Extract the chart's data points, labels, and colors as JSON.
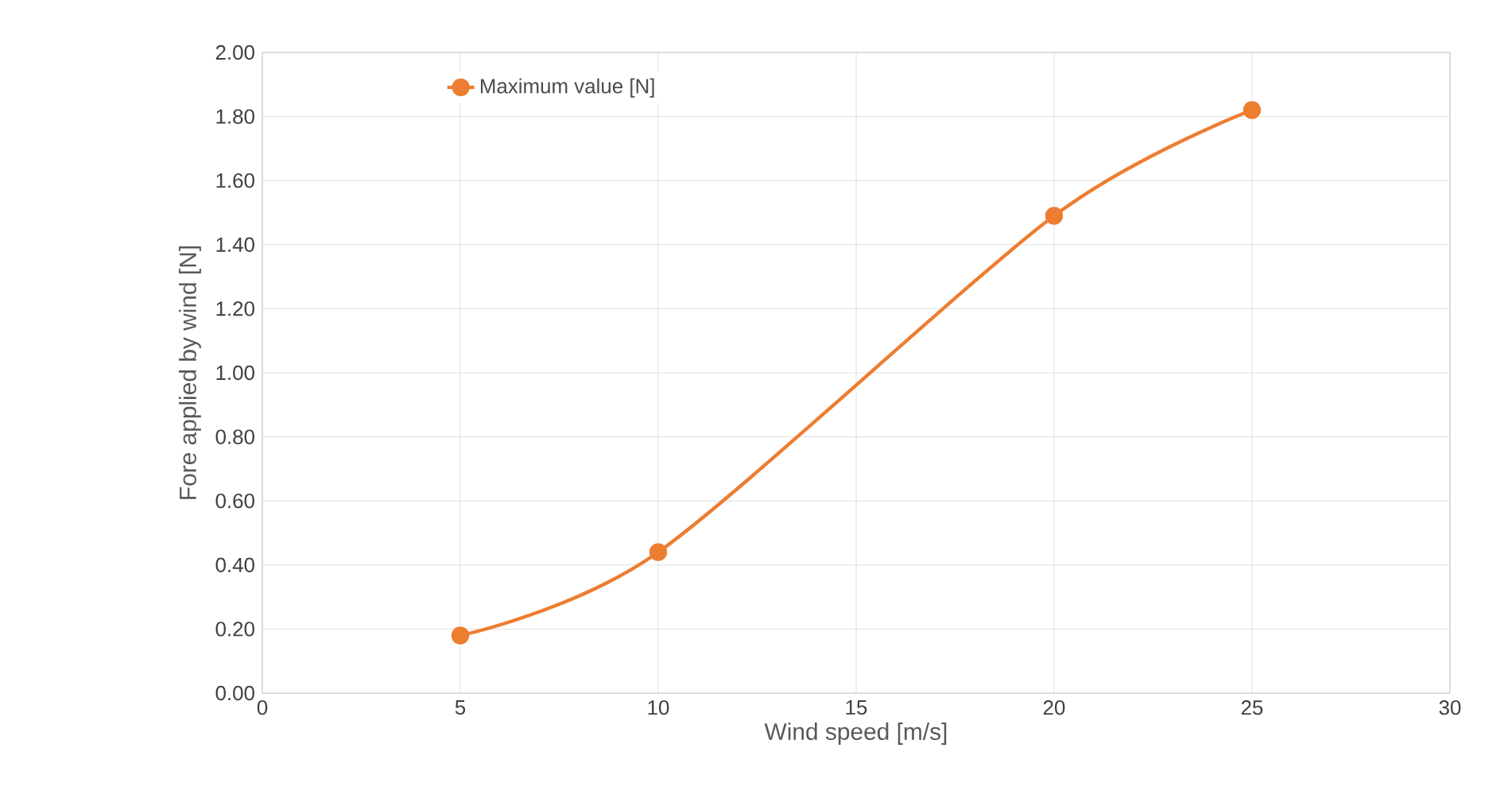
{
  "chart_data": {
    "type": "line",
    "xlabel": "Wind speed [m/s]",
    "ylabel": "Fore applied by wind [N]",
    "x": [
      5,
      10,
      20,
      25
    ],
    "series": [
      {
        "name": "Maximum value [N]",
        "color": "#ed7d31",
        "values": [
          0.18,
          0.44,
          1.49,
          1.82
        ]
      }
    ],
    "xlim": [
      0,
      30
    ],
    "xticks": [
      0,
      5,
      10,
      15,
      20,
      25,
      30
    ],
    "ylim": [
      0,
      2
    ],
    "yticks": [
      {
        "value": 0,
        "label": "0.00"
      },
      {
        "value": 0.2,
        "label": "0.20"
      },
      {
        "value": 0.4,
        "label": "0.40"
      },
      {
        "value": 0.6,
        "label": "0.60"
      },
      {
        "value": 0.8,
        "label": "0.80"
      },
      {
        "value": 1.0,
        "label": "1.00"
      },
      {
        "value": 1.2,
        "label": "1.20"
      },
      {
        "value": 1.4,
        "label": "1.40"
      },
      {
        "value": 1.6,
        "label": "1.60"
      },
      {
        "value": 1.8,
        "label": "1.80"
      },
      {
        "value": 2.0,
        "label": "2.00"
      }
    ],
    "grid": true,
    "legend": "top left",
    "marker": "circle",
    "line_style": "solid"
  }
}
